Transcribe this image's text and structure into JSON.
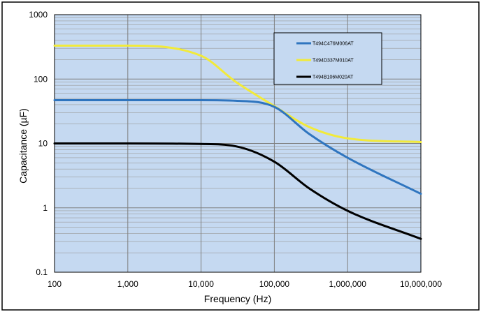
{
  "chart_data": {
    "type": "line",
    "title": "",
    "xlabel": "Frequency (Hz)",
    "ylabel": "Capacitance  (µF)",
    "x_scale": "log",
    "y_scale": "log",
    "xlim": [
      100,
      10000000
    ],
    "ylim": [
      0.1,
      1000
    ],
    "x_ticks": [
      "100",
      "1,000",
      "10,000",
      "100,000",
      "1,000,000",
      "10,000,000"
    ],
    "y_ticks": [
      "0.1",
      "1",
      "10",
      "100",
      "1000"
    ],
    "grid": true,
    "legend_position": "top-right",
    "x": [
      100,
      1000,
      10000,
      30000,
      100000,
      300000,
      1000000,
      10000000
    ],
    "series": [
      {
        "name": "T494C476M006AT",
        "color": "#2f75bf",
        "values": [
          47,
          47,
          47,
          46,
          37,
          14,
          6,
          1.65
        ]
      },
      {
        "name": "T494D337M010AT",
        "color": "#f2ea3a",
        "values": [
          330,
          330,
          230,
          90,
          38,
          18,
          12,
          10.5
        ]
      },
      {
        "name": "T494B106M020AT",
        "color": "#000000",
        "values": [
          10,
          10,
          9.8,
          9,
          5.2,
          2,
          0.9,
          0.33
        ]
      }
    ]
  }
}
